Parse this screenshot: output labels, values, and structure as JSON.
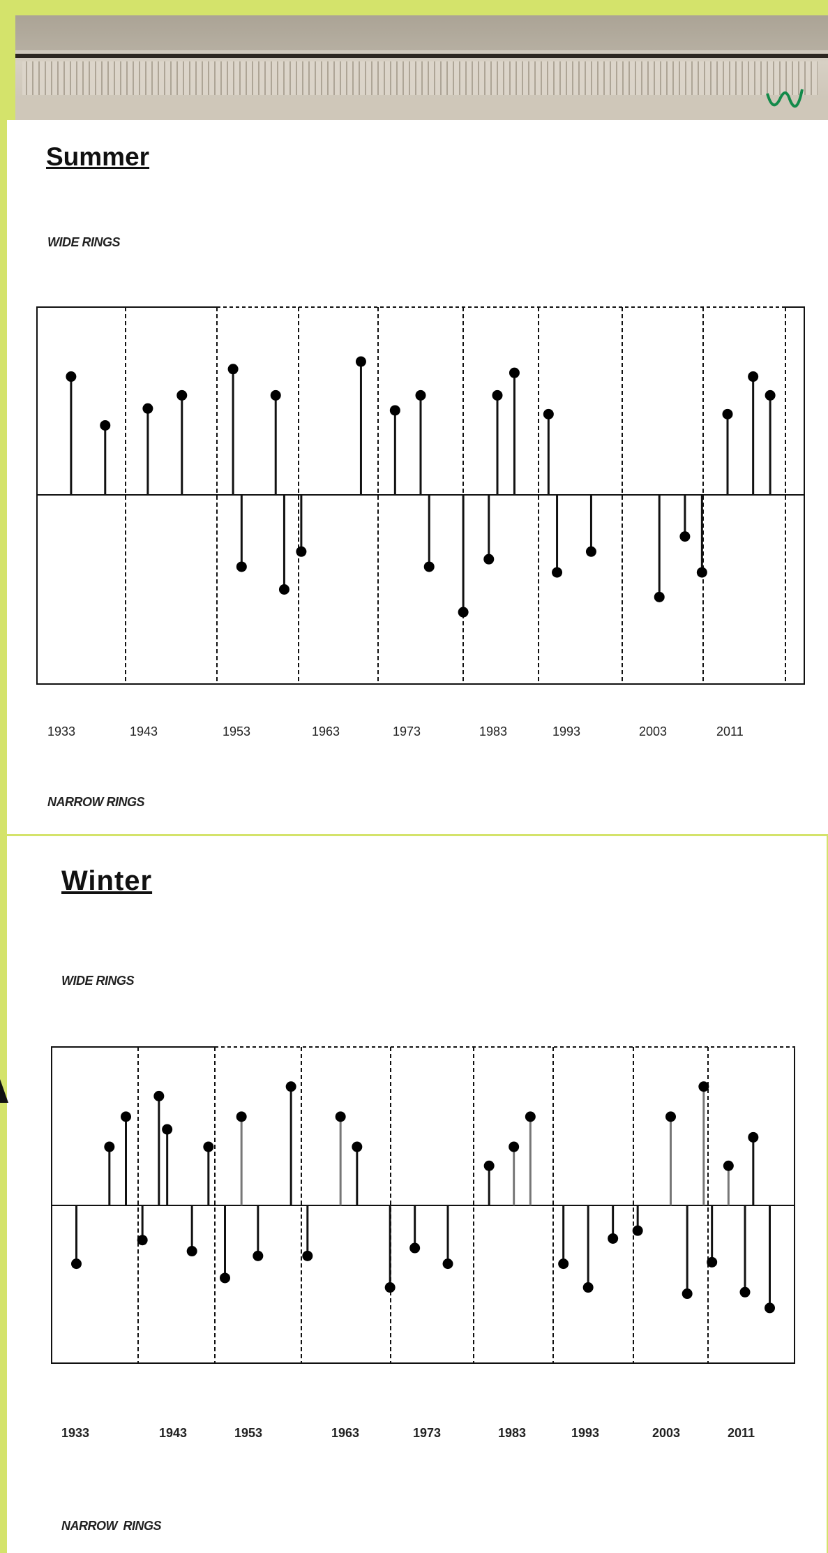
{
  "photo": {
    "name": "tree-ring-core-sample",
    "initial_mark": "W"
  },
  "summer": {
    "title": "Summer",
    "top_label": "WIDE RINGS",
    "bottom_label": "NARROW RINGS"
  },
  "winter": {
    "title": "Winter",
    "top_label": "WIDE RINGS",
    "bottom_label": "NARROW  RINGS"
  },
  "chart_data": [
    {
      "type": "scatter",
      "title": "Summer",
      "ylabel_top": "WIDE RINGS",
      "ylabel_bottom": "NARROW RINGS",
      "tick_labels": [
        "1933",
        "1943",
        "1953",
        "1963",
        "1973",
        "1983",
        "1993",
        "2003",
        "2011"
      ],
      "xlim": [
        1929,
        2019
      ],
      "ylim": [
        -1,
        1
      ],
      "grid": "vertical dashed",
      "x": [
        1933,
        1937,
        1942,
        1946,
        1952,
        1953,
        1957,
        1958,
        1960,
        1967,
        1971,
        1974,
        1975,
        1979,
        1982,
        1983,
        1985,
        1989,
        1990,
        1994,
        2002,
        2005,
        2007,
        2010,
        2013,
        2015
      ],
      "values": [
        0.63,
        0.37,
        0.46,
        0.53,
        0.67,
        -0.38,
        0.53,
        -0.5,
        -0.3,
        0.71,
        0.45,
        0.53,
        -0.38,
        -0.62,
        -0.34,
        0.53,
        0.65,
        0.43,
        -0.41,
        -0.3,
        -0.54,
        -0.22,
        -0.41,
        0.43,
        0.63,
        0.53
      ]
    },
    {
      "type": "scatter",
      "title": "Winter",
      "ylabel_top": "WIDE RINGS",
      "ylabel_bottom": "NARROW  RINGS",
      "tick_labels": [
        "1933",
        "1943",
        "1953",
        "1963",
        "1973",
        "1983",
        "1993",
        "2003",
        "2011"
      ],
      "xlim": [
        1929,
        2019
      ],
      "ylim": [
        -1,
        1
      ],
      "grid": "vertical dashed",
      "x": [
        1932,
        1936,
        1938,
        1940,
        1942,
        1943,
        1946,
        1948,
        1950,
        1952,
        1954,
        1958,
        1960,
        1964,
        1966,
        1970,
        1973,
        1977,
        1982,
        1985,
        1987,
        1991,
        1994,
        1997,
        2000,
        2004,
        2006,
        2008,
        2009,
        2011,
        2013,
        2014,
        2016
      ],
      "values": [
        -0.37,
        0.37,
        0.56,
        -0.22,
        0.69,
        0.48,
        -0.29,
        0.37,
        -0.46,
        0.56,
        -0.32,
        0.75,
        -0.32,
        0.56,
        0.37,
        -0.52,
        -0.27,
        -0.37,
        0.25,
        0.37,
        0.56,
        -0.37,
        -0.52,
        -0.21,
        -0.16,
        0.56,
        -0.56,
        0.75,
        -0.36,
        0.25,
        -0.55,
        0.43,
        -0.65
      ]
    }
  ]
}
